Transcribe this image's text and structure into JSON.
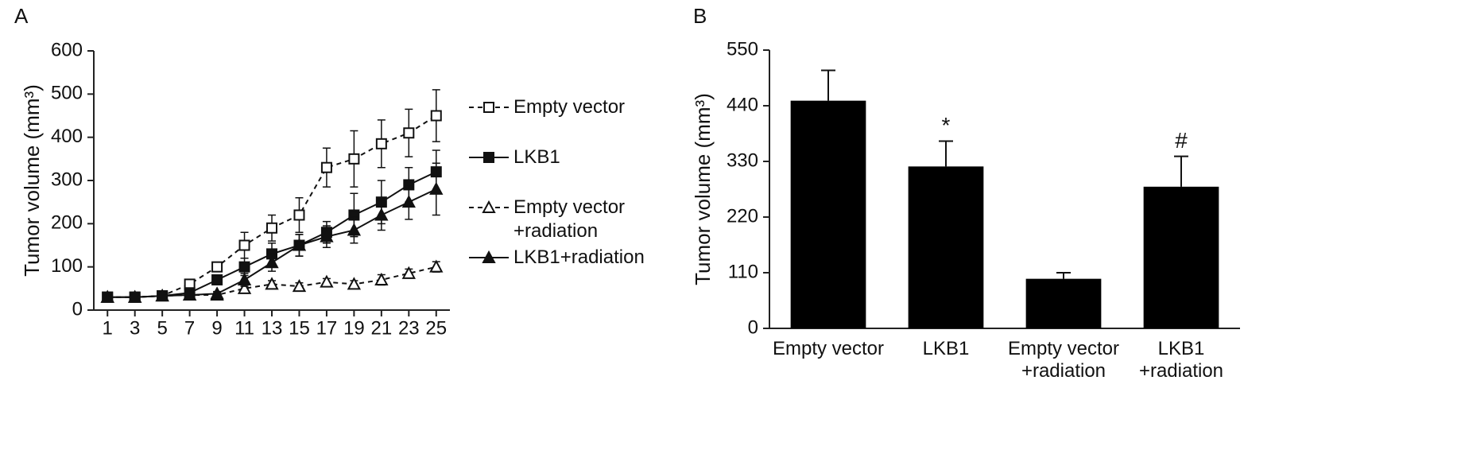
{
  "chart_data": [
    {
      "type": "line",
      "panel_label": "A",
      "y_label": "Tumor volume (mm³)",
      "x": [
        1,
        3,
        5,
        7,
        9,
        11,
        13,
        15,
        17,
        19,
        21,
        23,
        25
      ],
      "xlim": [
        0,
        26
      ],
      "xticks": [
        1,
        3,
        5,
        7,
        9,
        11,
        13,
        15,
        17,
        19,
        21,
        23,
        25
      ],
      "ylim": [
        0,
        600
      ],
      "yticks": [
        0,
        100,
        200,
        300,
        400,
        500,
        600
      ],
      "series": [
        {
          "name": "Empty vector",
          "color": "#111111",
          "line_style": "dashed",
          "marker": "square",
          "marker_fill": "open",
          "values": [
            30,
            30,
            33,
            60,
            100,
            150,
            190,
            220,
            330,
            350,
            385,
            410,
            450
          ],
          "errors": [
            5,
            5,
            5,
            8,
            10,
            30,
            30,
            40,
            45,
            65,
            55,
            55,
            60
          ]
        },
        {
          "name": "LKB1",
          "color": "#111111",
          "line_style": "solid",
          "marker": "square",
          "marker_fill": "filled",
          "values": [
            30,
            30,
            33,
            40,
            70,
            100,
            130,
            150,
            180,
            220,
            250,
            290,
            320
          ],
          "errors": [
            5,
            5,
            5,
            8,
            10,
            20,
            25,
            25,
            25,
            50,
            50,
            40,
            50
          ]
        },
        {
          "name": "Empty vector\n+radiation",
          "color": "#111111",
          "line_style": "dashed",
          "marker": "triangle",
          "marker_fill": "open",
          "values": [
            30,
            30,
            33,
            35,
            35,
            50,
            60,
            55,
            65,
            60,
            70,
            85,
            100
          ],
          "errors": [
            5,
            5,
            5,
            5,
            5,
            8,
            8,
            8,
            8,
            8,
            12,
            10,
            12
          ]
        },
        {
          "name": "LKB1+radiation",
          "color": "#111111",
          "line_style": "solid",
          "marker": "triangle",
          "marker_fill": "filled",
          "values": [
            30,
            30,
            33,
            35,
            38,
            70,
            110,
            150,
            170,
            185,
            220,
            250,
            280
          ],
          "errors": [
            5,
            5,
            5,
            5,
            5,
            15,
            20,
            25,
            25,
            30,
            35,
            40,
            60
          ]
        }
      ]
    },
    {
      "type": "bar",
      "panel_label": "B",
      "y_label": "Tumor volume (mm³)",
      "categories": [
        "Empty vector",
        "LKB1",
        "Empty vector\n+radiation",
        "LKB1\n+radiation"
      ],
      "values": [
        450,
        320,
        98,
        280
      ],
      "errors": [
        60,
        50,
        12,
        60
      ],
      "value_annotations": [
        null,
        "*",
        null,
        "#"
      ],
      "color": "#000000",
      "ylim": [
        0,
        550
      ],
      "yticks": [
        0,
        110,
        220,
        330,
        440,
        550
      ]
    }
  ]
}
